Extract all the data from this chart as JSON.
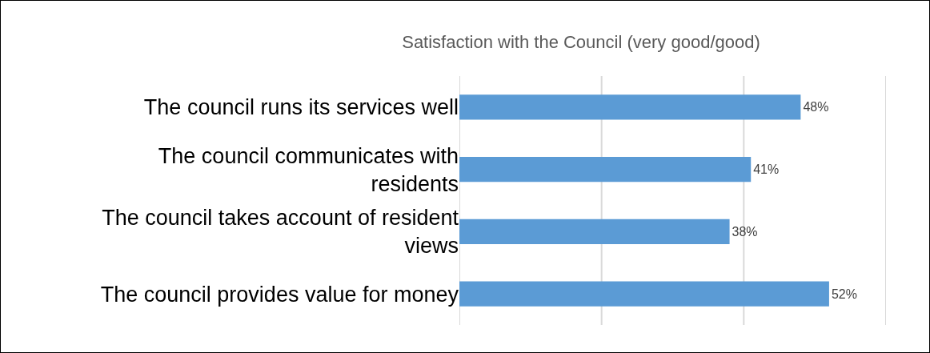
{
  "chart_data": {
    "type": "bar",
    "orientation": "horizontal",
    "title": "Satisfaction with the Council (very good/good)",
    "categories": [
      "The council runs its services well",
      "The council communicates with residents",
      "The council takes account of resident views",
      "The council provides value for money"
    ],
    "values": [
      48,
      41,
      38,
      52
    ],
    "value_labels": [
      "48%",
      "41%",
      "38%",
      "52%"
    ],
    "color": "#5b9bd5",
    "xlim": [
      0,
      60
    ],
    "xticks": [
      {
        "value": 0,
        "label": null
      },
      {
        "value": 20,
        "label": null
      },
      {
        "value": 40,
        "label": null
      },
      {
        "value": 60,
        "label": null
      }
    ],
    "grid": "x",
    "legend": false,
    "tick_labels": "y"
  }
}
